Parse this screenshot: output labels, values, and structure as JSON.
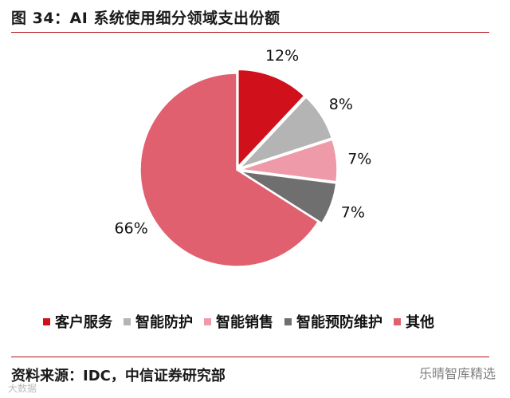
{
  "figure": {
    "title": "图 34：AI 系统使用细分领域支出份额",
    "source": "资料来源：IDC，中信证券研究部",
    "watermark": "乐晴智库精选",
    "watermark_small": "大数据"
  },
  "chart_data": {
    "type": "pie",
    "title": "图 34：AI 系统使用细分领域支出份额",
    "start_angle_deg": 0,
    "direction": "clockwise",
    "legend_position": "bottom",
    "slices": [
      {
        "name": "客户服务",
        "value": 12,
        "label": "12%",
        "color": "#d0111b",
        "explode": true
      },
      {
        "name": "智能防护",
        "value": 8,
        "label": "8%",
        "color": "#b4b4b4",
        "explode": true
      },
      {
        "name": "智能销售",
        "value": 7,
        "label": "7%",
        "color": "#ef9aa8",
        "explode": true
      },
      {
        "name": "智能预防维护",
        "value": 7,
        "label": "7%",
        "color": "#6f6f6f",
        "explode": true
      },
      {
        "name": "其他",
        "value": 66,
        "label": "66%",
        "color": "#e0606f",
        "explode": false
      }
    ]
  }
}
